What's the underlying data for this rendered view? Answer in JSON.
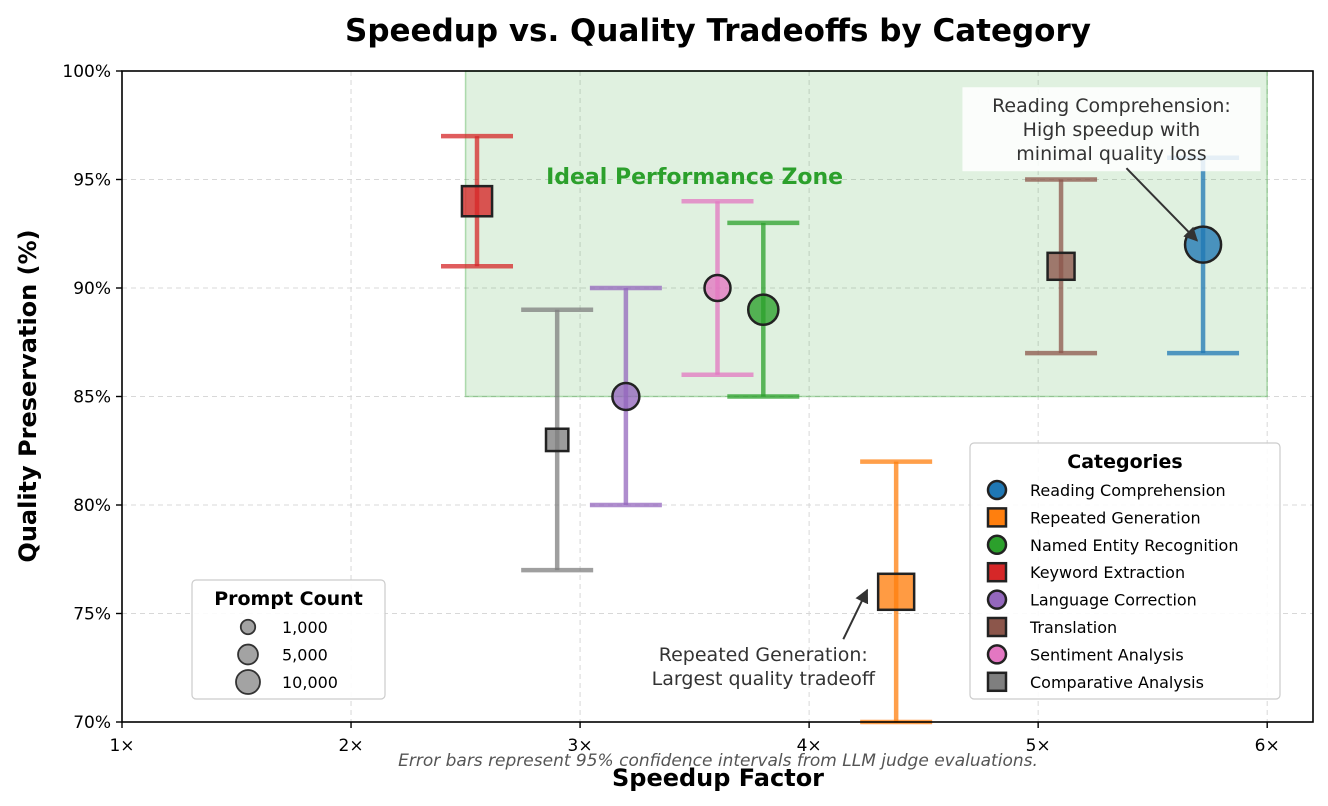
{
  "chart_data": {
    "type": "scatter",
    "title": "Speedup vs. Quality Tradeoffs by Category",
    "xlabel": "Speedup Factor",
    "ylabel": "Quality Preservation (%)",
    "xlim": [
      1,
      6.2
    ],
    "ylim": [
      70,
      100
    ],
    "x_ticks": [
      1,
      2,
      3,
      4,
      5,
      6
    ],
    "x_tick_labels": [
      "1×",
      "2×",
      "3×",
      "4×",
      "5×",
      "6×"
    ],
    "y_ticks": [
      70,
      75,
      80,
      85,
      90,
      95,
      100
    ],
    "y_tick_labels": [
      "70%",
      "75%",
      "80%",
      "85%",
      "90%",
      "95%",
      "100%"
    ],
    "grid": true,
    "ideal_zone": {
      "label": "Ideal Performance Zone",
      "x_range": [
        2.5,
        6
      ],
      "y_range": [
        85,
        100
      ],
      "color": "#2ca02c"
    },
    "series": [
      {
        "name": "Reading Comprehension",
        "marker": "circle",
        "color": "#1f77b4",
        "x": 5.72,
        "y": 92,
        "ci": [
          87,
          96
        ],
        "prompt_count": 10000
      },
      {
        "name": "Repeated Generation",
        "marker": "square",
        "color": "#ff7f0e",
        "x": 4.38,
        "y": 76,
        "ci": [
          70,
          82
        ],
        "prompt_count": 10000
      },
      {
        "name": "Named Entity Recognition",
        "marker": "circle",
        "color": "#2ca02c",
        "x": 3.8,
        "y": 89,
        "ci": [
          85,
          93
        ],
        "prompt_count": 5000
      },
      {
        "name": "Keyword Extraction",
        "marker": "square",
        "color": "#d62728",
        "x": 2.55,
        "y": 94,
        "ci": [
          91,
          97
        ],
        "prompt_count": 5000
      },
      {
        "name": "Language Correction",
        "marker": "circle",
        "color": "#9467bd",
        "x": 3.2,
        "y": 85,
        "ci": [
          80,
          90
        ],
        "prompt_count": 3000
      },
      {
        "name": "Translation",
        "marker": "square",
        "color": "#8c564b",
        "x": 5.1,
        "y": 91,
        "ci": [
          87,
          95
        ],
        "prompt_count": 3000
      },
      {
        "name": "Sentiment Analysis",
        "marker": "circle",
        "color": "#e377c2",
        "x": 3.6,
        "y": 90,
        "ci": [
          86,
          94
        ],
        "prompt_count": 2500
      },
      {
        "name": "Comparative Analysis",
        "marker": "square",
        "color": "#7f7f7f",
        "x": 2.9,
        "y": 83,
        "ci": [
          77,
          89
        ],
        "prompt_count": 1000
      }
    ],
    "legend": {
      "title": "Categories",
      "placement": "lower-right"
    },
    "size_legend": {
      "title": "Prompt Count",
      "placement": "lower-left",
      "entries": [
        {
          "label": "1,000",
          "value": 1000
        },
        {
          "label": "5,000",
          "value": 5000
        },
        {
          "label": "10,000",
          "value": 10000
        }
      ]
    },
    "annotations": [
      {
        "lines": [
          "Reading Comprehension:",
          "High speedup with",
          "minimal quality loss"
        ],
        "target": [
          5.72,
          92
        ],
        "text_anchor": [
          5.32,
          98.1
        ],
        "boxed": true
      },
      {
        "lines": [
          "Repeated Generation:",
          "Largest quality tradeoff"
        ],
        "target": [
          4.28,
          75.9
        ],
        "text_anchor": [
          3.8,
          72.8
        ],
        "boxed": false
      }
    ],
    "footnote": "Error bars represent 95% confidence intervals from LLM judge evaluations."
  }
}
